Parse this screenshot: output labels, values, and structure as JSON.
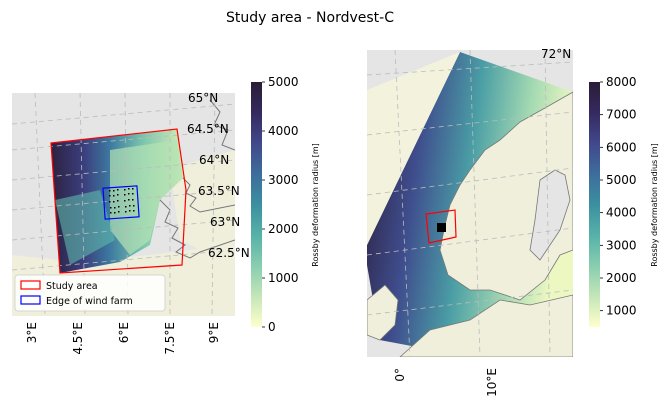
{
  "title": "Study area - Nordvest-C",
  "left_map": {
    "lat_labels": [
      "65°N",
      "64.5°N",
      "64°N",
      "63.5°N",
      "63°N",
      "62.5°N"
    ],
    "lon_labels": [
      "3°E",
      "4.5°E",
      "6°E",
      "7.5°E",
      "9°E"
    ],
    "legend": [
      {
        "label": "Study area",
        "color": "#ff0000"
      },
      {
        "label": "Edge of wind farm",
        "color": "#0000ff"
      }
    ],
    "colorbar": {
      "label": "Rossby deformation radius [m]",
      "ticks": [
        "0",
        "1000",
        "2000",
        "3000",
        "4000",
        "5000"
      ],
      "range": [
        0,
        5000
      ]
    }
  },
  "right_map": {
    "lat_labels": [
      "72°N"
    ],
    "lon_labels": [
      "0°",
      "10°E"
    ],
    "colorbar": {
      "label": "Rossby deformation radius [m]",
      "ticks": [
        "1000",
        "2000",
        "3000",
        "4000",
        "5000",
        "6000",
        "7000",
        "8000"
      ],
      "range": [
        500,
        8000
      ]
    }
  },
  "colors": {
    "land": "#efefdc",
    "coast": "#777777",
    "outside": "#e5e5e5",
    "study_area": "#ff0000",
    "wind_farm": "#0000ff",
    "colormap": [
      "#ffffcc",
      "#c4e6b8",
      "#88cdb0",
      "#56b1a8",
      "#3c8fa1",
      "#3d6d9b",
      "#41488c",
      "#352a5f",
      "#2a1c37"
    ]
  }
}
